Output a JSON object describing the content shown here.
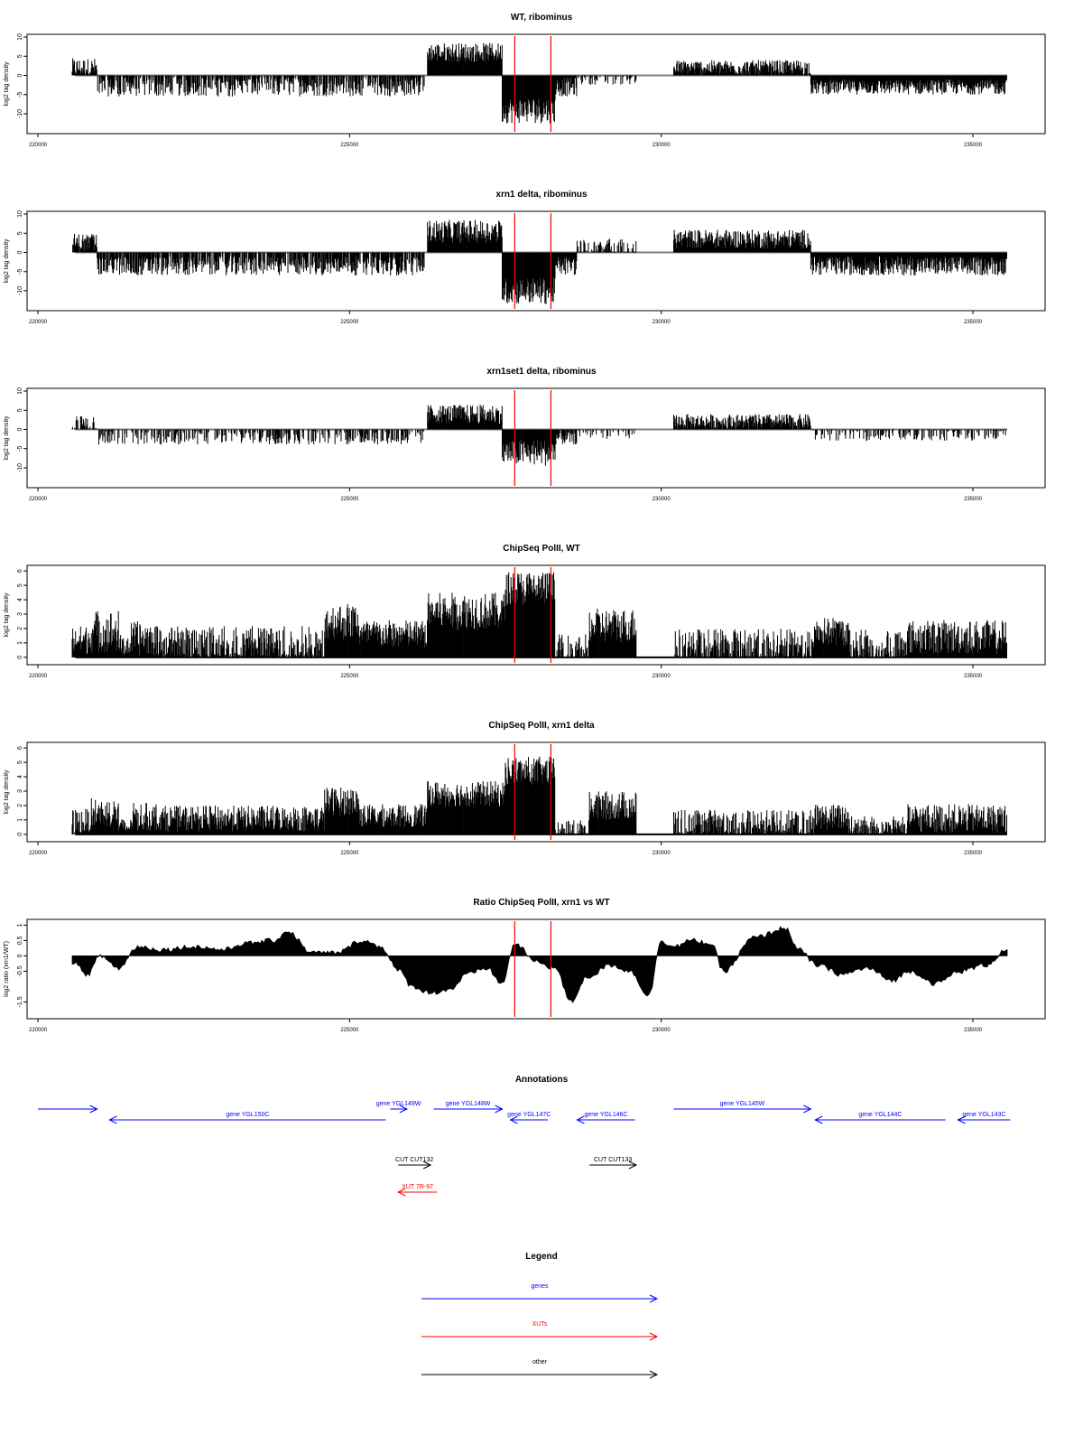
{
  "chart_data": [
    {
      "type": "bar",
      "title": "WT, ribominus",
      "ylabel": "log2 tag density",
      "xlim": [
        220000,
        235600
      ],
      "ylim": [
        -14,
        10
      ],
      "yticks": [
        10,
        5,
        0,
        -5,
        -10
      ],
      "xticks": [
        220000,
        225000,
        230000,
        235000
      ],
      "series_color": "#000000",
      "baseline_color": "#808080",
      "vlines": {
        "positions": [
          227650,
          228230
        ],
        "color": "#ff0000"
      },
      "segments": [
        {
          "start": 220550,
          "end": 220950,
          "level": 2.0,
          "var": 2.5
        },
        {
          "start": 220950,
          "end": 226200,
          "level": -3.0,
          "var": 2.5,
          "sparse": 0.7
        },
        {
          "start": 226250,
          "end": 227450,
          "level": 6.0,
          "var": 2.5
        },
        {
          "start": 227450,
          "end": 228300,
          "level": -9.0,
          "var": 3.5
        },
        {
          "start": 228300,
          "end": 228650,
          "level": -3.0,
          "var": 2.5
        },
        {
          "start": 228650,
          "end": 229600,
          "level": -1.0,
          "var": 1.5,
          "sparse": 0.4
        },
        {
          "start": 230200,
          "end": 232400,
          "level": 2.0,
          "var": 2.0
        },
        {
          "start": 232400,
          "end": 235550,
          "level": -3.0,
          "var": 2.0
        }
      ]
    },
    {
      "type": "bar",
      "title": "xrn1 delta, ribominus",
      "ylabel": "log2 tag density",
      "xlim": [
        220000,
        235600
      ],
      "ylim": [
        -14,
        10
      ],
      "yticks": [
        10,
        5,
        0,
        -5,
        -10
      ],
      "xticks": [
        220000,
        225000,
        230000,
        235000
      ],
      "series_color": "#000000",
      "baseline_color": "#808080",
      "vlines": {
        "positions": [
          227650,
          228230
        ],
        "color": "#ff0000"
      },
      "segments": [
        {
          "start": 220550,
          "end": 220950,
          "level": 2.5,
          "var": 2.5
        },
        {
          "start": 220950,
          "end": 226200,
          "level": -3.5,
          "var": 2.5,
          "sparse": 0.8
        },
        {
          "start": 226250,
          "end": 227450,
          "level": 5.5,
          "var": 3.0
        },
        {
          "start": 227450,
          "end": 228300,
          "level": -10.0,
          "var": 3.5
        },
        {
          "start": 228300,
          "end": 228650,
          "level": -3.5,
          "var": 2.5
        },
        {
          "start": 228650,
          "end": 229600,
          "level": 1.0,
          "var": 2.5,
          "sparse": 0.7
        },
        {
          "start": 230200,
          "end": 232400,
          "level": 3.5,
          "var": 2.5
        },
        {
          "start": 232400,
          "end": 235550,
          "level": -3.5,
          "var": 2.5
        }
      ]
    },
    {
      "type": "bar",
      "title": "xrn1set1 delta, ribominus",
      "ylabel": "log2 tag density",
      "xlim": [
        220000,
        235600
      ],
      "ylim": [
        -14,
        10
      ],
      "yticks": [
        10,
        5,
        0,
        -5,
        -10
      ],
      "xticks": [
        220000,
        225000,
        230000,
        235000
      ],
      "series_color": "#000000",
      "baseline_color": "#808080",
      "vlines": {
        "positions": [
          227650,
          228230
        ],
        "color": "#ff0000"
      },
      "segments": [
        {
          "start": 220550,
          "end": 220950,
          "level": 1.5,
          "var": 2.0,
          "sparse": 0.6
        },
        {
          "start": 220950,
          "end": 226200,
          "level": -2.0,
          "var": 2.0,
          "sparse": 0.5
        },
        {
          "start": 226250,
          "end": 227450,
          "level": 4.0,
          "var": 2.5
        },
        {
          "start": 227450,
          "end": 228300,
          "level": -6.0,
          "var": 3.5
        },
        {
          "start": 228300,
          "end": 228650,
          "level": -2.0,
          "var": 2.0
        },
        {
          "start": 228650,
          "end": 229600,
          "level": -0.5,
          "var": 2.0,
          "sparse": 0.5
        },
        {
          "start": 230200,
          "end": 232400,
          "level": 2.0,
          "var": 2.0
        },
        {
          "start": 232400,
          "end": 235550,
          "level": -1.0,
          "var": 2.0,
          "sparse": 0.5
        }
      ]
    },
    {
      "type": "bar",
      "title": "ChipSeq PolII, WT",
      "ylabel": "log2 tag density",
      "xlim": [
        220000,
        235600
      ],
      "ylim": [
        -0.2,
        6.2
      ],
      "yticks": [
        6,
        5,
        4,
        3,
        2,
        1,
        0
      ],
      "xticks": [
        220000,
        225000,
        230000,
        235000
      ],
      "series_color": "#000000",
      "baseline_color": "#000000",
      "vlines": {
        "positions": [
          227650,
          228230
        ],
        "color": "#ff0000"
      },
      "segments": [
        {
          "start": 220550,
          "end": 220850,
          "level": 1.2,
          "var": 1.0
        },
        {
          "start": 220850,
          "end": 221300,
          "level": 1.8,
          "var": 1.5
        },
        {
          "start": 221300,
          "end": 221500,
          "level": 0.8,
          "var": 0.8
        },
        {
          "start": 221500,
          "end": 221900,
          "level": 1.3,
          "var": 1.2
        },
        {
          "start": 221900,
          "end": 224600,
          "level": 1.0,
          "var": 1.2,
          "sparse": 0.8
        },
        {
          "start": 224600,
          "end": 225150,
          "level": 2.5,
          "var": 1.3
        },
        {
          "start": 225150,
          "end": 226250,
          "level": 1.6,
          "var": 1.0
        },
        {
          "start": 226250,
          "end": 227500,
          "level": 3.2,
          "var": 1.3
        },
        {
          "start": 227500,
          "end": 228300,
          "level": 4.8,
          "var": 1.2
        },
        {
          "start": 228300,
          "end": 228850,
          "level": 0.8,
          "var": 0.8,
          "sparse": 0.6
        },
        {
          "start": 228850,
          "end": 229600,
          "level": 2.2,
          "var": 1.2
        },
        {
          "start": 229600,
          "end": 230200,
          "level": 0.0,
          "var": 0.0
        },
        {
          "start": 230200,
          "end": 232450,
          "level": 1.0,
          "var": 1.0,
          "sparse": 0.7
        },
        {
          "start": 232450,
          "end": 233000,
          "level": 1.8,
          "var": 1.0
        },
        {
          "start": 233000,
          "end": 233950,
          "level": 1.0,
          "var": 1.0,
          "sparse": 0.7
        },
        {
          "start": 233950,
          "end": 235550,
          "level": 1.4,
          "var": 1.2
        }
      ]
    },
    {
      "type": "bar",
      "title": "ChipSeq PolII, xrn1 delta",
      "ylabel": "log2 tag density",
      "xlim": [
        220000,
        235600
      ],
      "ylim": [
        -0.2,
        6.2
      ],
      "yticks": [
        6,
        5,
        4,
        3,
        2,
        1,
        0
      ],
      "xticks": [
        220000,
        225000,
        230000,
        235000
      ],
      "series_color": "#000000",
      "baseline_color": "#000000",
      "vlines": {
        "positions": [
          227650,
          228230
        ],
        "color": "#ff0000"
      },
      "segments": [
        {
          "start": 220550,
          "end": 220850,
          "level": 0.8,
          "var": 1.0
        },
        {
          "start": 220850,
          "end": 221300,
          "level": 1.5,
          "var": 1.0
        },
        {
          "start": 221300,
          "end": 221500,
          "level": 0.5,
          "var": 0.6
        },
        {
          "start": 221500,
          "end": 221900,
          "level": 1.2,
          "var": 1.0
        },
        {
          "start": 221900,
          "end": 224600,
          "level": 1.1,
          "var": 0.9
        },
        {
          "start": 224600,
          "end": 225150,
          "level": 2.3,
          "var": 1.0
        },
        {
          "start": 225150,
          "end": 226250,
          "level": 1.3,
          "var": 0.8
        },
        {
          "start": 226250,
          "end": 227500,
          "level": 2.8,
          "var": 0.9
        },
        {
          "start": 227500,
          "end": 228300,
          "level": 4.4,
          "var": 1.0
        },
        {
          "start": 228300,
          "end": 228850,
          "level": 0.4,
          "var": 0.6,
          "sparse": 0.6
        },
        {
          "start": 228850,
          "end": 229600,
          "level": 2.0,
          "var": 1.0
        },
        {
          "start": 229600,
          "end": 230200,
          "level": 0.0,
          "var": 0.0
        },
        {
          "start": 230200,
          "end": 232450,
          "level": 0.8,
          "var": 0.9,
          "sparse": 0.8
        },
        {
          "start": 232450,
          "end": 233000,
          "level": 1.2,
          "var": 0.9
        },
        {
          "start": 233000,
          "end": 233950,
          "level": 0.6,
          "var": 0.7,
          "sparse": 0.7
        },
        {
          "start": 233950,
          "end": 235550,
          "level": 1.1,
          "var": 1.0
        }
      ]
    },
    {
      "type": "area",
      "title": "Ratio ChipSeq PolII, xrn1 vs WT",
      "ylabel": "log2 ratio (xrn1/WT)",
      "xlim": [
        220000,
        235600
      ],
      "ylim": [
        -1.9,
        1.1
      ],
      "yticks": [
        1.0,
        0.5,
        0.0,
        -0.5,
        -1.5
      ],
      "xticks": [
        220000,
        225000,
        230000,
        235000
      ],
      "series_color": "#000000",
      "baseline_color": "#000000",
      "vlines": {
        "positions": [
          227650,
          228230
        ],
        "color": "#ff0000"
      },
      "curve": {
        "x": [
          220550,
          220800,
          221000,
          221300,
          221600,
          222000,
          222500,
          223000,
          223300,
          223800,
          224000,
          224400,
          224800,
          225200,
          225500,
          225800,
          226000,
          226300,
          226600,
          226900,
          227200,
          227450,
          227650,
          228000,
          228300,
          228550,
          228800,
          229200,
          229500,
          229800,
          230000,
          230200,
          230500,
          230800,
          231000,
          231500,
          232000,
          232200,
          232500,
          232900,
          233300,
          233700,
          234000,
          234400,
          234800,
          235200,
          235550
        ],
        "y": [
          -0.2,
          -0.6,
          0.0,
          -0.4,
          0.3,
          0.2,
          0.3,
          0.2,
          0.4,
          0.5,
          0.8,
          0.1,
          0.1,
          0.5,
          0.3,
          -0.5,
          -1.0,
          -1.2,
          -1.1,
          -0.6,
          -0.4,
          -0.9,
          0.4,
          -0.2,
          -0.4,
          -1.5,
          -0.7,
          -0.3,
          -0.5,
          -1.3,
          0.5,
          0.3,
          0.5,
          0.4,
          -0.5,
          0.6,
          0.9,
          0.2,
          -0.3,
          -0.6,
          -0.4,
          -0.8,
          -0.5,
          -0.9,
          -0.5,
          -0.3,
          0.2
        ]
      }
    }
  ],
  "annotations": {
    "title": "Annotations",
    "features": [
      {
        "label": "",
        "type": "gene",
        "start": 220000,
        "end": 220950,
        "dir": "+",
        "row": 0
      },
      {
        "label": "gene YGL150C",
        "type": "gene",
        "start": 221150,
        "end": 225580,
        "dir": "-",
        "row": 1
      },
      {
        "label": "gene YGL149W",
        "type": "gene",
        "start": 225650,
        "end": 225920,
        "dir": "+",
        "row": 0
      },
      {
        "label": "gene YGL148W",
        "type": "gene",
        "start": 226350,
        "end": 227450,
        "dir": "+",
        "row": 0
      },
      {
        "label": "gene YGL147C",
        "type": "gene",
        "start": 227580,
        "end": 228180,
        "dir": "-",
        "row": 1
      },
      {
        "label": "gene YGL146C",
        "type": "gene",
        "start": 228650,
        "end": 229580,
        "dir": "-",
        "row": 1
      },
      {
        "label": "gene YGL145W",
        "type": "gene",
        "start": 230200,
        "end": 232400,
        "dir": "+",
        "row": 0
      },
      {
        "label": "gene YGL144C",
        "type": "gene",
        "start": 232470,
        "end": 234560,
        "dir": "-",
        "row": 1
      },
      {
        "label": "gene YGL143C",
        "type": "gene",
        "start": 234760,
        "end": 235600,
        "dir": "-",
        "row": 1
      },
      {
        "label": "CUT CUT132",
        "type": "other",
        "start": 225780,
        "end": 226300,
        "dir": "+",
        "row": 2
      },
      {
        "label": "CUT CUT133",
        "type": "other",
        "start": 228850,
        "end": 229600,
        "dir": "+",
        "row": 2
      },
      {
        "label": "XUT 7R-97",
        "type": "xut",
        "start": 225780,
        "end": 226400,
        "dir": "-",
        "row": 3
      }
    ],
    "colors": {
      "gene": "#0000ff",
      "xut": "#ff0000",
      "other": "#000000"
    }
  },
  "legend": {
    "title": "Legend",
    "entries": [
      {
        "label": "genes",
        "color": "#0000ff"
      },
      {
        "label": "XUTs",
        "color": "#ff0000"
      },
      {
        "label": "other",
        "color": "#000000"
      }
    ]
  }
}
